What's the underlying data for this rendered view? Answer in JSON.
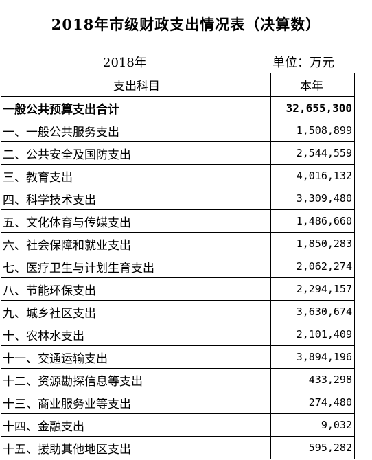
{
  "title": "2018年市级财政支出情况表（决算数）",
  "year": "2018年",
  "unit": "单位：万元",
  "header": {
    "item": "支出科目",
    "value": "本年"
  },
  "total": {
    "label": "一般公共预算支出合计",
    "value": "32,655,300"
  },
  "rows": [
    {
      "label": "一、一般公共服务支出",
      "value": "1,508,899"
    },
    {
      "label": "二、公共安全及国防支出",
      "value": "2,544,559"
    },
    {
      "label": "三、教育支出",
      "value": "4,016,132"
    },
    {
      "label": "四、科学技术支出",
      "value": "3,309,480"
    },
    {
      "label": "五、文化体育与传媒支出",
      "value": "1,486,660"
    },
    {
      "label": "六、社会保障和就业支出",
      "value": "1,850,283"
    },
    {
      "label": "七、医疗卫生与计划生育支出",
      "value": "2,062,274"
    },
    {
      "label": "八、节能环保支出",
      "value": "2,294,157"
    },
    {
      "label": "九、城乡社区支出",
      "value": "3,630,674"
    },
    {
      "label": "十、农林水支出",
      "value": "2,101,409"
    },
    {
      "label": "十一、交通运输支出",
      "value": "3,894,196"
    },
    {
      "label": "十二、资源勘探信息等支出",
      "value": "433,298"
    },
    {
      "label": "十三、商业服务业等支出",
      "value": "274,480"
    },
    {
      "label": "十四、金融支出",
      "value": "9,032"
    },
    {
      "label": "十五、援助其他地区支出",
      "value": "595,282"
    }
  ]
}
